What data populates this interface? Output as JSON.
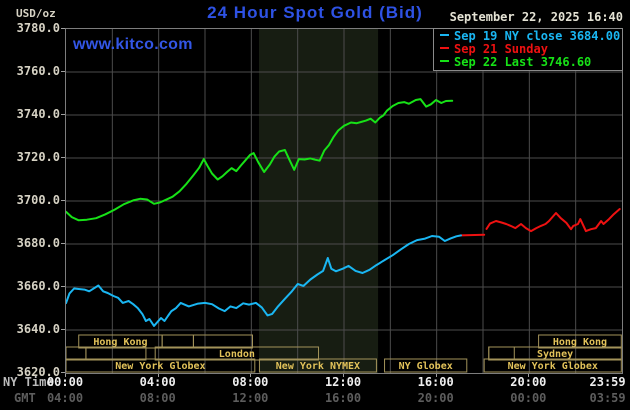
{
  "header": {
    "unit_label": "USD/oz",
    "title": "24 Hour Spot Gold (Bid)",
    "datetime": "September 22, 2025 16:40",
    "watermark": "www.kitco.com"
  },
  "legend": {
    "items": [
      {
        "label": "Sep 19 NY close 3684.00",
        "color": "#1ab6f2"
      },
      {
        "label": "Sep 21 Sunday",
        "color": "#ee1111"
      },
      {
        "label": "Sep 22 Last 3746.60",
        "color": "#17e217"
      }
    ]
  },
  "axes": {
    "y_ticks": [
      "3780.0",
      "3760.0",
      "3740.0",
      "3720.0",
      "3700.0",
      "3680.0",
      "3660.0",
      "3640.0",
      "3620.0"
    ],
    "tick_hours": [
      0,
      4,
      8,
      12,
      16,
      20,
      23.42
    ],
    "x_rows": [
      {
        "label": "NY Time",
        "label_color": "#bcbcbc",
        "tick_color": "#efefef",
        "ticks": [
          "00:00",
          "04:00",
          "08:00",
          "12:00",
          "16:00",
          "20:00",
          "23:59"
        ]
      },
      {
        "label": "GMT",
        "label_color": "#5d5d5d",
        "tick_color": "#5d5d5d",
        "ticks": [
          "04:00",
          "08:00",
          "12:00",
          "16:00",
          "20:00",
          "00:00",
          "03:59"
        ]
      }
    ]
  },
  "sessions": {
    "border_color": "#a3935a",
    "text_color": "#e2c25a",
    "rows": [
      {
        "boxes": [
          {
            "start": 0.55,
            "end": 4.15,
            "label": "Hong Kong"
          },
          {
            "start": 4.15,
            "end": 5.5,
            "label": ""
          },
          {
            "start": 5.5,
            "end": 8.05,
            "label": ""
          },
          {
            "start": 20.4,
            "end": 23.97,
            "label": "Hong Kong"
          }
        ]
      },
      {
        "boxes": [
          {
            "start": 0,
            "end": 0.86,
            "label": ""
          },
          {
            "start": 0.86,
            "end": 3.45,
            "label": ""
          },
          {
            "start": 3.85,
            "end": 10.9,
            "label": "London"
          },
          {
            "start": 18.25,
            "end": 19.35,
            "label": ""
          },
          {
            "start": 18.25,
            "end": 23.97,
            "label": "Sydney"
          }
        ]
      },
      {
        "boxes": [
          {
            "start": 0,
            "end": 8.15,
            "label": "New York Globex"
          },
          {
            "start": 8.35,
            "end": 13.4,
            "label": "New York NYMEX"
          },
          {
            "start": 13.75,
            "end": 17.3,
            "label": "NY Globex"
          },
          {
            "start": 18.05,
            "end": 23.97,
            "label": "New York Globex"
          }
        ]
      }
    ]
  },
  "chart_data": {
    "type": "line",
    "title": "24 Hour Spot Gold (Bid)",
    "ylabel": "USD/oz",
    "ylim": [
      3620,
      3780
    ],
    "y_tick_step": 20,
    "x_hours": [
      0,
      24
    ],
    "x_gridline_step_hours": 2,
    "grid": true,
    "background": "#000000",
    "grid_color": "#4c4c4c",
    "shaded_band_hours": [
      8.33,
      13.47
    ],
    "shaded_band_color": "#171d12",
    "legend_position": "top-right",
    "series": [
      {
        "name": "Sep 21 Sunday",
        "color": "#ee1111",
        "segments": [
          [
            [
              17.05,
              3684
            ],
            [
              18.05,
              3684.3
            ]
          ],
          [
            [
              18.15,
              3687
            ],
            [
              18.3,
              3689.5
            ],
            [
              18.56,
              3690.7
            ],
            [
              18.8,
              3690
            ],
            [
              19.0,
              3689.3
            ],
            [
              19.2,
              3688.4
            ],
            [
              19.4,
              3687.4
            ],
            [
              19.64,
              3689.3
            ],
            [
              19.85,
              3687.4
            ],
            [
              20.07,
              3686
            ],
            [
              20.3,
              3687.4
            ],
            [
              20.5,
              3688.4
            ],
            [
              20.7,
              3689.3
            ],
            [
              20.85,
              3690.7
            ],
            [
              21.15,
              3694.4
            ],
            [
              21.36,
              3692
            ],
            [
              21.6,
              3689.8
            ],
            [
              21.8,
              3686.9
            ],
            [
              21.9,
              3688.4
            ],
            [
              22.1,
              3689.3
            ],
            [
              22.2,
              3691.6
            ],
            [
              22.44,
              3686
            ],
            [
              22.66,
              3686.9
            ],
            [
              22.87,
              3687.4
            ],
            [
              23.1,
              3690.7
            ],
            [
              23.2,
              3689.3
            ],
            [
              23.44,
              3691.6
            ],
            [
              23.65,
              3693.9
            ],
            [
              23.9,
              3696.3
            ]
          ]
        ]
      },
      {
        "name": "Sep 19 NY close 3684.00",
        "color": "#1ab6f2",
        "segments": [
          [
            [
              0,
              3652.5
            ],
            [
              0.15,
              3657
            ],
            [
              0.35,
              3659.3
            ],
            [
              0.8,
              3658.8
            ],
            [
              1.0,
              3658
            ],
            [
              1.4,
              3660.7
            ],
            [
              1.6,
              3658
            ],
            [
              1.8,
              3657.2
            ],
            [
              2.05,
              3655.8
            ],
            [
              2.25,
              3655
            ],
            [
              2.45,
              3652.6
            ],
            [
              2.7,
              3653.5
            ],
            [
              2.9,
              3652
            ],
            [
              3.1,
              3650.2
            ],
            [
              3.3,
              3647.4
            ],
            [
              3.45,
              3644.2
            ],
            [
              3.6,
              3645.1
            ],
            [
              3.8,
              3641.9
            ],
            [
              4.1,
              3645.6
            ],
            [
              4.25,
              3644.2
            ],
            [
              4.4,
              3646.5
            ],
            [
              4.55,
              3648.8
            ],
            [
              4.75,
              3650.2
            ],
            [
              4.95,
              3652.6
            ],
            [
              5.3,
              3651
            ],
            [
              5.7,
              3652.3
            ],
            [
              6.0,
              3652.6
            ],
            [
              6.3,
              3652
            ],
            [
              6.6,
              3650
            ],
            [
              6.85,
              3648.8
            ],
            [
              7.1,
              3651
            ],
            [
              7.35,
              3650.2
            ],
            [
              7.65,
              3652.4
            ],
            [
              7.9,
              3651.8
            ],
            [
              8.2,
              3652.6
            ],
            [
              8.45,
              3650.5
            ],
            [
              8.7,
              3646.8
            ],
            [
              8.9,
              3647.5
            ],
            [
              9.15,
              3651
            ],
            [
              9.45,
              3654.5
            ],
            [
              9.75,
              3658
            ],
            [
              10.0,
              3661.4
            ],
            [
              10.25,
              3660.5
            ],
            [
              10.55,
              3663.5
            ],
            [
              10.85,
              3665.8
            ],
            [
              11.1,
              3667.5
            ],
            [
              11.3,
              3673.5
            ],
            [
              11.45,
              3668.5
            ],
            [
              11.65,
              3667.3
            ],
            [
              11.95,
              3668.5
            ],
            [
              12.2,
              3669.8
            ],
            [
              12.5,
              3667.5
            ],
            [
              12.8,
              3666.5
            ],
            [
              13.1,
              3668
            ],
            [
              13.4,
              3670.2
            ],
            [
              13.75,
              3672.5
            ],
            [
              14.1,
              3674.8
            ],
            [
              14.45,
              3677.5
            ],
            [
              14.8,
              3680
            ],
            [
              15.15,
              3681.8
            ],
            [
              15.5,
              3682.5
            ],
            [
              15.8,
              3683.7
            ],
            [
              16.1,
              3683.4
            ],
            [
              16.35,
              3681.4
            ],
            [
              16.6,
              3682.6
            ],
            [
              16.85,
              3683.6
            ],
            [
              17.05,
              3684
            ]
          ]
        ]
      },
      {
        "name": "Sep 22 Last 3746.60",
        "color": "#17e217",
        "segments": [
          [
            [
              0,
              3695
            ],
            [
              0.25,
              3692.5
            ],
            [
              0.55,
              3691
            ],
            [
              0.9,
              3691.3
            ],
            [
              1.3,
              3692
            ],
            [
              1.7,
              3693.8
            ],
            [
              2.1,
              3696
            ],
            [
              2.5,
              3698.5
            ],
            [
              2.9,
              3700.3
            ],
            [
              3.2,
              3701
            ],
            [
              3.5,
              3700.7
            ],
            [
              3.8,
              3698.7
            ],
            [
              4.05,
              3699.3
            ],
            [
              4.3,
              3700.5
            ],
            [
              4.6,
              3702
            ],
            [
              4.9,
              3704.5
            ],
            [
              5.2,
              3708
            ],
            [
              5.5,
              3712
            ],
            [
              5.75,
              3715.5
            ],
            [
              5.95,
              3719.5
            ],
            [
              6.1,
              3716.5
            ],
            [
              6.3,
              3712.8
            ],
            [
              6.55,
              3710
            ],
            [
              6.75,
              3711.5
            ],
            [
              6.95,
              3713.5
            ],
            [
              7.15,
              3715.3
            ],
            [
              7.35,
              3713.9
            ],
            [
              7.55,
              3716.5
            ],
            [
              7.75,
              3719
            ],
            [
              7.95,
              3721.5
            ],
            [
              8.1,
              3722.3
            ],
            [
              8.3,
              3718
            ],
            [
              8.55,
              3713.5
            ],
            [
              8.8,
              3717
            ],
            [
              9.0,
              3720.7
            ],
            [
              9.2,
              3723
            ],
            [
              9.45,
              3723.7
            ],
            [
              9.65,
              3719
            ],
            [
              9.85,
              3714.5
            ],
            [
              10.05,
              3719.5
            ],
            [
              10.3,
              3719.3
            ],
            [
              10.55,
              3719.8
            ],
            [
              10.75,
              3719.2
            ],
            [
              10.95,
              3718.8
            ],
            [
              11.15,
              3723.5
            ],
            [
              11.35,
              3726
            ],
            [
              11.55,
              3729.8
            ],
            [
              11.75,
              3732.8
            ],
            [
              12.0,
              3735
            ],
            [
              12.3,
              3736.5
            ],
            [
              12.55,
              3736.2
            ],
            [
              12.75,
              3736.8
            ],
            [
              12.95,
              3737.4
            ],
            [
              13.15,
              3738.3
            ],
            [
              13.35,
              3736.5
            ],
            [
              13.55,
              3738.8
            ],
            [
              13.7,
              3739.8
            ],
            [
              13.85,
              3742
            ],
            [
              14.1,
              3744.2
            ],
            [
              14.35,
              3745.6
            ],
            [
              14.6,
              3746
            ],
            [
              14.8,
              3745.2
            ],
            [
              15.1,
              3747
            ],
            [
              15.3,
              3747.4
            ],
            [
              15.55,
              3743.9
            ],
            [
              15.75,
              3745
            ],
            [
              15.97,
              3747
            ],
            [
              16.2,
              3745.6
            ],
            [
              16.4,
              3746.5
            ],
            [
              16.67,
              3746.6
            ]
          ]
        ]
      }
    ]
  }
}
